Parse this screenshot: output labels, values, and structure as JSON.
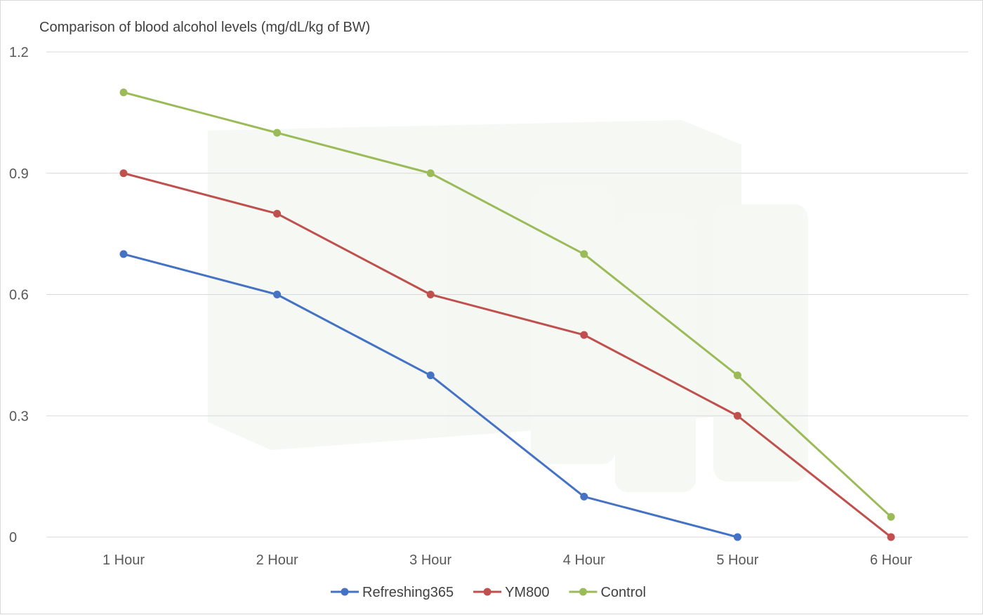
{
  "chart_data": {
    "type": "line",
    "title": "Comparison of blood alcohol levels (mg/dL/kg of BW)",
    "xlabel": "",
    "ylabel": "",
    "categories": [
      "1 Hour",
      "2 Hour",
      "3 Hour",
      "4 Hour",
      "5 Hour",
      "6 Hour"
    ],
    "ylim": [
      0,
      1.2
    ],
    "yticks": [
      "0",
      "0.3",
      "0.6",
      "0.9",
      "1.2"
    ],
    "grid": true,
    "legend": "bottom",
    "series": [
      {
        "name": "Refreshing365",
        "color": "#4472c4",
        "values": [
          0.7,
          0.6,
          0.4,
          0.1,
          0.0,
          null
        ]
      },
      {
        "name": "YM800",
        "color": "#c0504d",
        "values": [
          0.9,
          0.8,
          0.6,
          0.5,
          0.3,
          0.0
        ]
      },
      {
        "name": "Control",
        "color": "#9bbb59",
        "values": [
          1.1,
          1.0,
          0.9,
          0.7,
          0.4,
          0.05
        ]
      }
    ]
  }
}
